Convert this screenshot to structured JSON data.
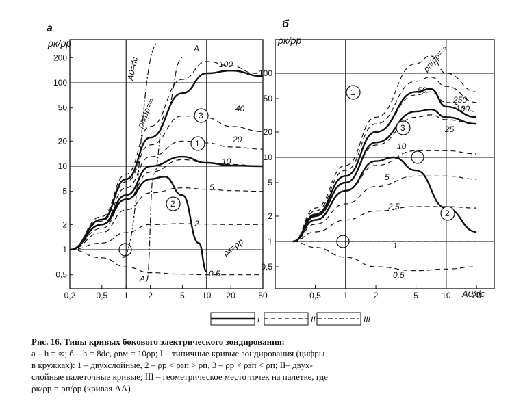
{
  "panels": [
    {
      "id": "a",
      "label": "а",
      "y_axis_label": "ρк/ρр",
      "x_ticks": [
        "0,2",
        "0,5",
        "1",
        "2",
        "5",
        "10",
        "20",
        "50"
      ],
      "y_ticks": [
        "0,5",
        "1",
        "2",
        "5",
        "10",
        "20",
        "50",
        "100",
        "200"
      ],
      "line_annotations": [
        "A0=dc",
        "ρп/ρр=∞",
        "A",
        "A",
        "ρк=ρр"
      ],
      "curve_labels": [
        "100",
        "40",
        "20",
        "10",
        "5",
        "2",
        "0,5"
      ],
      "circled_labels": [
        "3",
        "1",
        "2"
      ]
    },
    {
      "id": "b",
      "label": "б",
      "y_axis_label": "ρк/ρр",
      "x_axis_label": "A0/dc",
      "x_ticks": [
        "0,5",
        "1",
        "2",
        "5",
        "10",
        "20"
      ],
      "y_ticks": [
        "0,5",
        "1",
        "2",
        "5",
        "10",
        "20",
        "50",
        "100"
      ],
      "line_annotations": [
        "ρп/ρр=∞"
      ],
      "curve_labels": [
        "250",
        "100",
        "50",
        "25",
        "10",
        "5",
        "2,5",
        "1",
        "0,5"
      ],
      "circled_labels": [
        "1",
        "3",
        "2"
      ]
    }
  ],
  "chart_data": [
    {
      "type": "line",
      "panel": "а",
      "x_scale": "log",
      "y_scale": "log",
      "xlim": [
        0.2,
        50
      ],
      "ylim": [
        0.4,
        300
      ],
      "xlabel": "",
      "ylabel": "ρк/ρр",
      "series": [
        {
          "name": "100",
          "style": "dashed",
          "x": [
            0.2,
            0.5,
            1,
            2,
            5,
            10,
            20,
            40,
            50
          ],
          "y": [
            1,
            2.5,
            8,
            30,
            110,
            180,
            160,
            130,
            120
          ]
        },
        {
          "name": "40",
          "style": "dashed",
          "x": [
            0.2,
            0.5,
            1,
            2,
            5,
            10,
            20,
            50
          ],
          "y": [
            1,
            2.2,
            6.5,
            18,
            40,
            38,
            30,
            26
          ]
        },
        {
          "name": "20",
          "style": "dashed",
          "x": [
            0.2,
            0.5,
            1,
            2,
            5,
            10,
            20,
            50
          ],
          "y": [
            1,
            2,
            5.5,
            13,
            20,
            19,
            17,
            16
          ]
        },
        {
          "name": "10",
          "style": "dashed",
          "x": [
            0.2,
            0.5,
            1,
            2,
            5,
            10,
            20,
            50
          ],
          "y": [
            1,
            1.8,
            4,
            8.5,
            12,
            11,
            10.5,
            10
          ]
        },
        {
          "name": "5",
          "style": "dashed",
          "x": [
            0.2,
            0.5,
            1,
            2,
            5,
            10,
            20,
            50
          ],
          "y": [
            1,
            1.6,
            3,
            4.8,
            5.5,
            5.3,
            5.1,
            5
          ]
        },
        {
          "name": "2",
          "style": "dashed",
          "x": [
            0.2,
            0.5,
            1,
            2,
            5,
            10,
            20,
            50
          ],
          "y": [
            1,
            1.2,
            1.6,
            2,
            2.05,
            2.02,
            2,
            2
          ]
        },
        {
          "name": "0,5",
          "style": "dashed",
          "x": [
            0.2,
            0.5,
            1,
            2,
            5,
            10,
            20,
            50
          ],
          "y": [
            1,
            0.8,
            0.62,
            0.53,
            0.51,
            0.5,
            0.5,
            0.5
          ]
        },
        {
          "name": "1",
          "style": "solid",
          "circled": true,
          "x": [
            0.2,
            0.5,
            1,
            2,
            5,
            10,
            20,
            50
          ],
          "y": [
            1,
            2,
            4.5,
            10,
            13,
            11,
            10.2,
            10
          ]
        },
        {
          "name": "3",
          "style": "solid",
          "circled": true,
          "x": [
            0.2,
            0.5,
            1,
            2,
            5,
            10,
            20,
            50
          ],
          "y": [
            1,
            2.3,
            7,
            22,
            75,
            130,
            140,
            120
          ]
        },
        {
          "name": "2",
          "style": "solid",
          "circled": true,
          "x": [
            0.2,
            0.5,
            1,
            2,
            3,
            5,
            8,
            10
          ],
          "y": [
            1,
            2,
            4,
            7,
            7.5,
            4.5,
            1.2,
            0.55
          ]
        },
        {
          "name": "A0=dc",
          "style": "dash-dot",
          "x": [
            0.9,
            2.5
          ],
          "y": [
            0.8,
            300
          ]
        },
        {
          "name": "A",
          "style": "dash-dot",
          "x": [
            1.8,
            2.2,
            3,
            5
          ],
          "y": [
            0.42,
            8,
            40,
            200
          ]
        }
      ]
    },
    {
      "type": "line",
      "panel": "б",
      "x_scale": "log",
      "y_scale": "log",
      "xlim": [
        0.2,
        30
      ],
      "ylim": [
        0.3,
        200
      ],
      "xlabel": "A0/dc",
      "ylabel": "ρк/ρр",
      "series": [
        {
          "name": "250",
          "style": "dashed",
          "x": [
            0.3,
            0.5,
            1,
            2,
            5,
            7,
            10,
            20
          ],
          "y": [
            1,
            2.5,
            8,
            30,
            130,
            160,
            100,
            60
          ]
        },
        {
          "name": "100",
          "style": "dashed",
          "x": [
            0.3,
            0.5,
            1,
            2,
            5,
            7,
            10,
            20
          ],
          "y": [
            1,
            2.3,
            7,
            25,
            80,
            90,
            70,
            45
          ]
        },
        {
          "name": "50",
          "style": "dashed",
          "x": [
            0.3,
            0.5,
            1,
            2,
            5,
            7,
            10,
            20
          ],
          "y": [
            1,
            2.1,
            6,
            20,
            55,
            60,
            45,
            35
          ]
        },
        {
          "name": "25",
          "style": "dashed",
          "x": [
            0.3,
            0.5,
            1,
            2,
            5,
            7,
            10,
            20
          ],
          "y": [
            1,
            2,
            5,
            14,
            30,
            32,
            28,
            25
          ]
        },
        {
          "name": "10",
          "style": "dashed",
          "x": [
            0.3,
            0.5,
            1,
            2,
            5,
            10,
            20
          ],
          "y": [
            1,
            1.8,
            4,
            8,
            12,
            12,
            11
          ]
        },
        {
          "name": "5",
          "style": "dashed",
          "x": [
            0.3,
            0.5,
            1,
            2,
            5,
            10,
            20
          ],
          "y": [
            1,
            1.6,
            2.8,
            4.5,
            6,
            6,
            5.5
          ]
        },
        {
          "name": "2,5",
          "style": "dashed",
          "x": [
            0.3,
            0.5,
            1,
            2,
            5,
            10,
            20
          ],
          "y": [
            1,
            1.3,
            1.8,
            2.3,
            2.6,
            2.6,
            2.5
          ]
        },
        {
          "name": "1",
          "style": "dashed",
          "x": [
            0.3,
            1,
            20
          ],
          "y": [
            1,
            1,
            1
          ]
        },
        {
          "name": "0,5",
          "style": "dashed",
          "x": [
            0.3,
            0.5,
            1,
            2,
            5,
            10,
            20
          ],
          "y": [
            1,
            0.85,
            0.65,
            0.5,
            0.45,
            0.47,
            0.5
          ]
        },
        {
          "name": "1",
          "style": "solid",
          "circled": true,
          "x": [
            0.3,
            0.5,
            1,
            2,
            5,
            7,
            10,
            20
          ],
          "y": [
            1,
            2.1,
            6,
            20,
            60,
            65,
            40,
            30
          ]
        },
        {
          "name": "3",
          "style": "solid",
          "circled": true,
          "x": [
            0.3,
            0.5,
            1,
            2,
            5,
            7,
            10,
            20
          ],
          "y": [
            1,
            2,
            5,
            15,
            35,
            37,
            30,
            25
          ]
        },
        {
          "name": "2",
          "style": "solid",
          "circled": true,
          "x": [
            0.3,
            0.5,
            1,
            2,
            3,
            5,
            10,
            20
          ],
          "y": [
            1,
            1.8,
            4,
            9,
            10,
            7,
            2.5,
            1.3
          ]
        }
      ]
    }
  ],
  "legend": [
    {
      "label": "I",
      "style": "solid"
    },
    {
      "label": "II",
      "style": "dashed"
    },
    {
      "label": "III",
      "style": "dash-dot"
    }
  ],
  "caption": {
    "title": "Рис. 16. Типы кривых бокового электрического зондирования:",
    "line1": "а – h = ∞; б – h = 8dс, ρвм = 10ρр; I – типичные кривые зондирования (цифры",
    "line2": "в кружках): 1 – двухслойные, 2 – ρр < ρзп > ρп, 3 – ρр < ρзп < ρп; II– двух-",
    "line3": "слойные палеточные кривые; III – геометрическое место точек на палетке, где",
    "line4": "ρк/ρр = ρп/ρр (кривая AA)"
  }
}
